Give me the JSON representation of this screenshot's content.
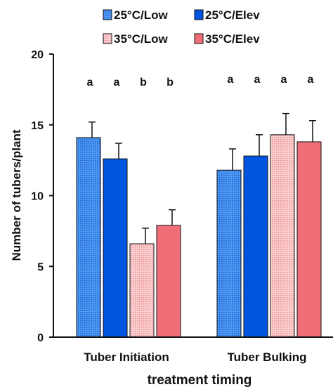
{
  "chart_data": {
    "type": "bar",
    "title": "",
    "xlabel": "treatment timing",
    "ylabel": "Number of tubers/plant",
    "ylim": [
      0,
      20
    ],
    "yticks": [
      0,
      5,
      10,
      15,
      20
    ],
    "grid": false,
    "legend_position": "top",
    "categories": [
      "Tuber Initiation",
      "Tuber Bulking"
    ],
    "series": [
      {
        "name": "25°C/Low",
        "values": [
          14.1,
          11.8
        ],
        "errors": [
          1.1,
          1.5
        ],
        "letters": [
          "a",
          "a"
        ],
        "color": "#3d8ef0",
        "pattern": "dots"
      },
      {
        "name": "25°C/Elev",
        "values": [
          12.6,
          12.8
        ],
        "errors": [
          1.1,
          1.5
        ],
        "letters": [
          "a",
          "a"
        ],
        "color": "#0055e0",
        "pattern": "solid"
      },
      {
        "name": "35°C/Low",
        "values": [
          6.6,
          14.3
        ],
        "errors": [
          1.1,
          1.5
        ],
        "letters": [
          "b",
          "a"
        ],
        "color": "#f5b8b8",
        "pattern": "dots"
      },
      {
        "name": "35°C/Elev",
        "values": [
          7.9,
          13.8
        ],
        "errors": [
          1.1,
          1.5
        ],
        "letters": [
          "b",
          "a"
        ],
        "color": "#f06e78",
        "pattern": "solid"
      }
    ]
  }
}
